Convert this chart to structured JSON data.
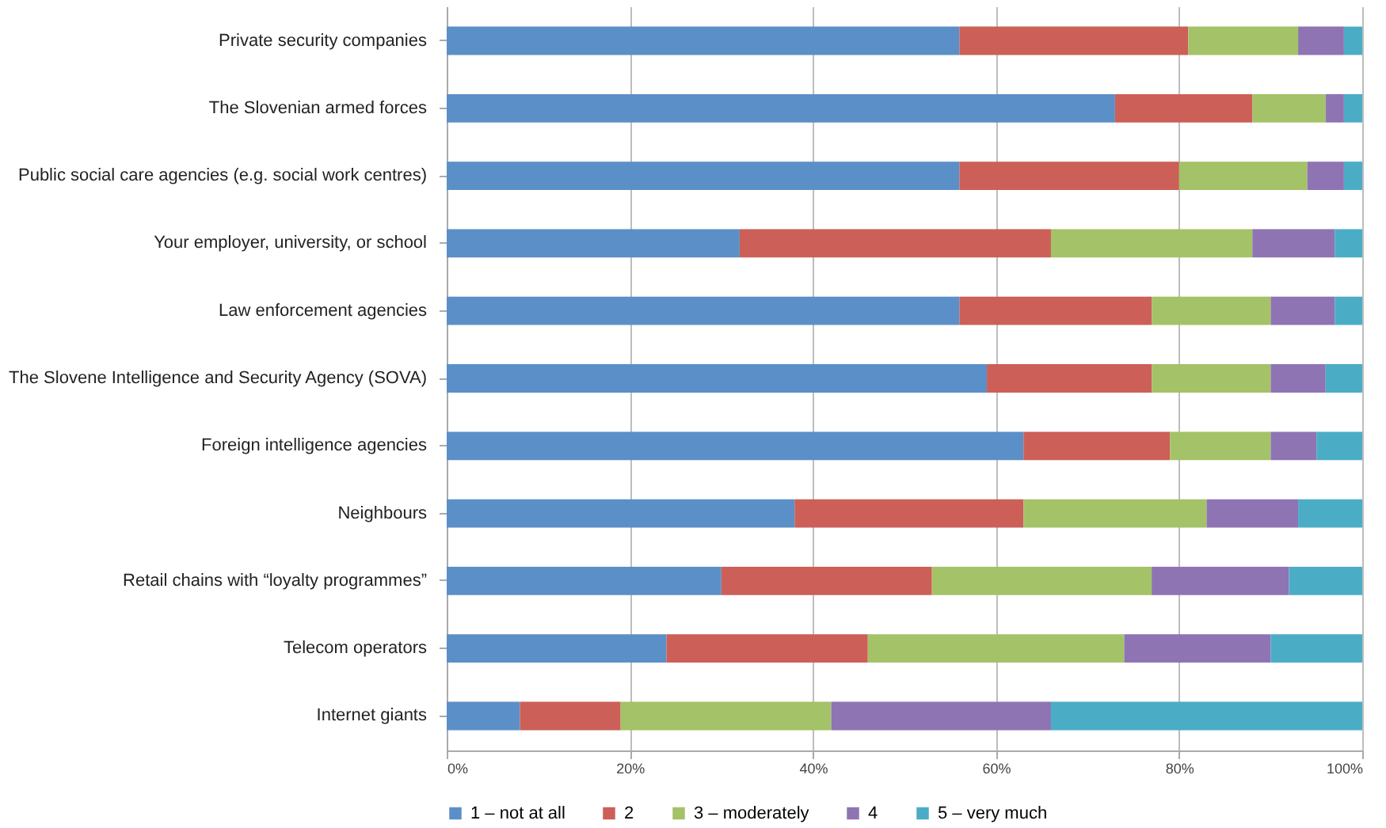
{
  "chart_data": {
    "type": "bar",
    "orientation": "horizontal",
    "stacked": true,
    "categories": [
      "Private security companies",
      "The Slovenian armed forces",
      "Public social care agencies (e.g. social work centres)",
      "Your employer, university, or school",
      "Law enforcement agencies",
      "The Slovene Intelligence and Security Agency (SOVA)",
      "Foreign intelligence agencies",
      "Neighbours",
      "Retail chains with “loyalty programmes”",
      "Telecom operators",
      "Internet giants"
    ],
    "series": [
      {
        "name": "1 – not at all",
        "color": "#5b8fc7",
        "values": [
          56,
          73,
          56,
          32,
          56,
          59,
          63,
          38,
          30,
          24,
          8
        ]
      },
      {
        "name": "2",
        "color": "#cc5f58",
        "values": [
          25,
          15,
          24,
          34,
          21,
          18,
          16,
          25,
          23,
          22,
          11
        ]
      },
      {
        "name": "3 – moderately",
        "color": "#a4c267",
        "values": [
          12,
          8,
          14,
          22,
          13,
          13,
          11,
          20,
          24,
          28,
          23
        ]
      },
      {
        "name": "4",
        "color": "#8e74b3",
        "values": [
          5,
          2,
          4,
          9,
          7,
          6,
          5,
          10,
          15,
          16,
          24
        ]
      },
      {
        "name": "5 – very much",
        "color": "#4bacc6",
        "values": [
          2,
          2,
          2,
          3,
          3,
          4,
          5,
          7,
          8,
          10,
          34
        ]
      }
    ],
    "xlim": [
      0,
      100
    ],
    "xticks": [
      {
        "value": 0,
        "label": "0%"
      },
      {
        "value": 20,
        "label": "20%"
      },
      {
        "value": 40,
        "label": "40%"
      },
      {
        "value": 60,
        "label": "60%"
      },
      {
        "value": 80,
        "label": "80%"
      },
      {
        "value": 100,
        "label": "100%"
      }
    ],
    "grid": "x",
    "legend": "bottom"
  }
}
